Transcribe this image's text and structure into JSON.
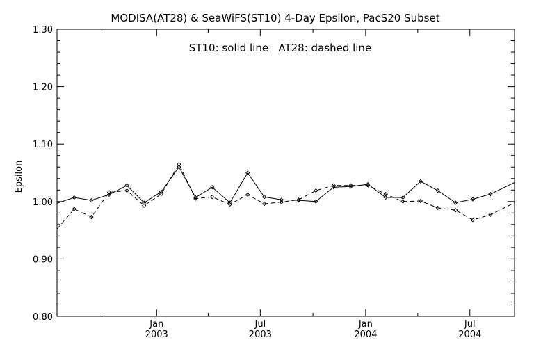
{
  "chart_data": {
    "type": "line",
    "title": "MODISA(AT28) & SeaWiFS(ST10) 4-Day Epsilon, PacS20 Subset",
    "annotation": "ST10: solid line   AT28: dashed line",
    "ylabel": "Epsilon",
    "xlabel": "",
    "ylim": [
      0.8,
      1.3
    ],
    "xlim": [
      "2002-07-11",
      "2004-09-17"
    ],
    "y_ticks": [
      "0.80",
      "0.90",
      "1.00",
      "1.10",
      "1.20",
      "1.30"
    ],
    "x_major_ticks": [
      {
        "date": "2003-01-01",
        "label1": "Jan",
        "label2": "2003"
      },
      {
        "date": "2003-07-01",
        "label1": "Jul",
        "label2": "2003"
      },
      {
        "date": "2004-01-01",
        "label1": "Jan",
        "label2": "2004"
      },
      {
        "date": "2004-07-01",
        "label1": "Jul",
        "label2": "2004"
      }
    ],
    "x_minor_ticks": [
      "2002-10-01",
      "2003-04-01",
      "2003-10-01",
      "2004-04-01"
    ],
    "grid": false,
    "series": [
      {
        "name": "ST10",
        "style": "solid",
        "color": "#000000",
        "x": [
          "2002-07-11",
          "2002-08-10",
          "2002-09-09",
          "2002-10-10",
          "2002-11-10",
          "2002-12-10",
          "2003-01-09",
          "2003-02-09",
          "2003-03-10",
          "2003-04-08",
          "2003-05-09",
          "2003-06-09",
          "2003-07-08",
          "2003-08-07",
          "2003-09-06",
          "2003-10-06",
          "2003-11-06",
          "2003-12-06",
          "2004-01-05",
          "2004-02-05",
          "2004-03-06",
          "2004-04-06",
          "2004-05-06",
          "2004-06-06",
          "2004-07-06",
          "2004-08-06",
          "2004-09-17"
        ],
        "y": [
          0.997,
          1.007,
          1.002,
          1.012,
          1.028,
          0.998,
          1.017,
          1.06,
          1.007,
          1.025,
          0.998,
          1.05,
          1.008,
          1.003,
          1.002,
          1.0,
          1.025,
          1.026,
          1.03,
          1.007,
          1.007,
          1.035,
          1.019,
          0.998,
          1.004,
          1.013,
          1.033
        ]
      },
      {
        "name": "AT28",
        "style": "dashed",
        "color": "#000000",
        "x": [
          "2002-07-11",
          "2002-08-10",
          "2002-09-09",
          "2002-10-10",
          "2002-11-10",
          "2002-12-10",
          "2003-01-09",
          "2003-02-09",
          "2003-03-10",
          "2003-04-08",
          "2003-05-09",
          "2003-06-09",
          "2003-07-08",
          "2003-08-07",
          "2003-09-06",
          "2003-10-06",
          "2003-11-06",
          "2003-12-06",
          "2004-01-05",
          "2004-02-05",
          "2004-03-06",
          "2004-04-06",
          "2004-05-06",
          "2004-06-06",
          "2004-07-06",
          "2004-08-06",
          "2004-09-17"
        ],
        "y": [
          0.952,
          0.987,
          0.973,
          1.016,
          1.019,
          0.993,
          1.013,
          1.065,
          1.005,
          1.008,
          0.995,
          1.012,
          0.996,
          0.999,
          1.003,
          1.019,
          1.028,
          1.028,
          1.028,
          1.013,
          1.0,
          1.001,
          0.989,
          0.985,
          0.968,
          0.977,
          0.998
        ]
      }
    ]
  }
}
